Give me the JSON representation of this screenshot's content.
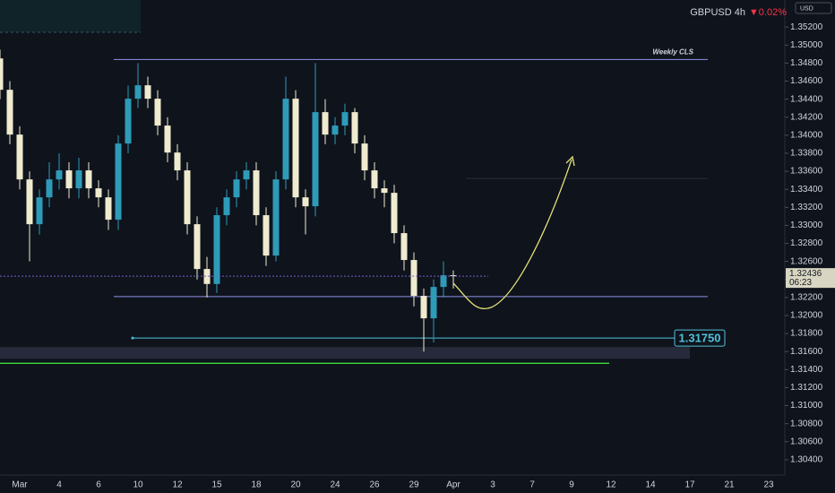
{
  "chart_data": {
    "type": "candlestick",
    "symbol": "GBPUSD 4h",
    "change": {
      "value": -0.02,
      "label": "▼0.02%"
    },
    "currency": "USD",
    "countdown": "06:23",
    "categories": [
      null,
      null,
      "Mar",
      null,
      null,
      null,
      "4",
      null,
      null,
      null,
      "6",
      null,
      null,
      null,
      "10",
      null,
      null,
      null,
      "12",
      null,
      null,
      null,
      "15",
      null,
      null,
      null,
      "18",
      null,
      null,
      null,
      "20",
      null,
      null,
      null,
      "24",
      null,
      null,
      null,
      "26",
      null,
      null,
      null,
      "29",
      null,
      null,
      null,
      "Apr",
      null,
      null,
      null,
      "3",
      null,
      null,
      null,
      "7",
      null,
      null,
      null,
      "9",
      null,
      null,
      null,
      "12",
      null,
      null,
      null,
      "14",
      null,
      null,
      null,
      "17",
      null,
      null,
      null,
      "21",
      null,
      null,
      null,
      "23",
      null
    ],
    "open": [
      1.34852,
      1.34504,
      1.34007,
      1.3351,
      1.33013,
      1.33311,
      1.3351,
      1.3361,
      1.33411,
      1.3361,
      1.33411,
      1.33311,
      1.33063,
      1.33908,
      1.34405,
      1.34554,
      1.34405,
      1.34107,
      1.33808,
      1.3361,
      1.33013,
      1.32516,
      1.3235,
      1.33113,
      1.33311,
      1.3351,
      1.3361,
      1.33113,
      1.32665,
      1.3351,
      1.34405,
      1.33311,
      1.33212,
      1.34256,
      1.34007,
      1.34107,
      1.34256,
      1.33908,
      1.3361,
      1.33411,
      1.33361,
      1.32914,
      1.32616,
      1.32218,
      1.31969,
      1.32317,
      1.32447,
      null,
      null,
      null,
      null,
      null,
      null,
      null,
      null,
      null,
      null,
      null,
      null,
      null,
      null,
      null,
      null,
      null,
      null,
      null,
      null,
      null,
      null,
      null,
      null,
      null,
      null,
      null,
      null,
      null,
      null,
      null,
      null,
      null
    ],
    "high": [
      1.3495,
      1.346,
      1.341,
      1.336,
      1.334,
      1.337,
      1.338,
      1.337,
      1.3375,
      1.337,
      1.335,
      1.334,
      1.34,
      1.3455,
      1.348,
      1.3465,
      1.345,
      1.342,
      1.339,
      1.337,
      1.331,
      1.3265,
      1.332,
      1.334,
      1.336,
      1.337,
      1.337,
      1.332,
      1.336,
      1.3465,
      1.345,
      1.334,
      1.348,
      1.344,
      1.342,
      1.3435,
      1.343,
      1.34,
      1.337,
      1.335,
      1.3345,
      1.33,
      1.327,
      1.323,
      1.324,
      1.326,
      1.325,
      null,
      null,
      null,
      null,
      null,
      null,
      null,
      null,
      null,
      null,
      null,
      null,
      null,
      null,
      null,
      null,
      null,
      null,
      null,
      null,
      null,
      null,
      null,
      null,
      null,
      null,
      null,
      null,
      null,
      null,
      null,
      null,
      null
    ],
    "low": [
      1.344,
      1.339,
      1.334,
      1.326,
      1.329,
      1.332,
      1.334,
      1.333,
      1.333,
      1.333,
      1.332,
      1.3295,
      1.3295,
      1.338,
      1.343,
      1.343,
      1.34,
      1.337,
      1.335,
      1.329,
      1.324,
      1.322,
      1.3225,
      1.33,
      1.332,
      1.334,
      1.33,
      1.3255,
      1.326,
      1.334,
      1.332,
      1.329,
      1.331,
      1.339,
      1.339,
      1.34,
      1.338,
      1.335,
      1.333,
      1.332,
      1.328,
      1.325,
      1.321,
      1.316,
      1.317,
      1.322,
      1.323,
      null,
      null,
      null,
      null,
      null,
      null,
      null,
      null,
      null,
      null,
      null,
      null,
      null,
      null,
      null,
      null,
      null,
      null,
      null,
      null,
      null,
      null,
      null,
      null,
      null,
      null,
      null,
      null,
      null,
      null,
      null,
      null,
      null
    ],
    "close": [
      1.34504,
      1.34007,
      1.3351,
      1.33013,
      1.33311,
      1.3351,
      1.3361,
      1.33411,
      1.3361,
      1.33411,
      1.33311,
      1.33063,
      1.33908,
      1.34405,
      1.34554,
      1.34405,
      1.34107,
      1.33808,
      1.3361,
      1.33013,
      1.32516,
      1.3235,
      1.33113,
      1.33311,
      1.3351,
      1.3361,
      1.33113,
      1.32665,
      1.3351,
      1.34405,
      1.33311,
      1.33212,
      1.34256,
      1.34007,
      1.34107,
      1.34256,
      1.33908,
      1.3361,
      1.33411,
      1.33361,
      1.32914,
      1.32616,
      1.32218,
      1.31969,
      1.32317,
      1.32447,
      1.32436,
      null,
      null,
      null,
      null,
      null,
      null,
      null,
      null,
      null,
      null,
      null,
      null,
      null,
      null,
      null,
      null,
      null,
      null,
      null,
      null,
      null,
      null,
      null,
      null,
      null,
      null,
      null,
      null,
      null,
      null,
      null,
      null,
      null
    ],
    "up_color": "#2e9bb8",
    "down_color": "#efebcf",
    "ylim": [
      1.3023,
      1.355
    ],
    "yticks": [
      {
        "value": 1.352,
        "label": "1.35200"
      },
      {
        "value": 1.35,
        "label": "1.35000"
      },
      {
        "value": 1.348,
        "label": "1.34800"
      },
      {
        "value": 1.346,
        "label": "1.34600"
      },
      {
        "value": 1.344,
        "label": "1.34400"
      },
      {
        "value": 1.342,
        "label": "1.34200"
      },
      {
        "value": 1.34,
        "label": "1.34000"
      },
      {
        "value": 1.338,
        "label": "1.33800"
      },
      {
        "value": 1.336,
        "label": "1.33600"
      },
      {
        "value": 1.334,
        "label": "1.33400"
      },
      {
        "value": 1.332,
        "label": "1.33200"
      },
      {
        "value": 1.33,
        "label": "1.33000"
      },
      {
        "value": 1.328,
        "label": "1.32800"
      },
      {
        "value": 1.326,
        "label": "1.32600"
      },
      {
        "value": 1.324,
        "label": "1.32400"
      },
      {
        "value": 1.322,
        "label": "1.32200"
      },
      {
        "value": 1.32,
        "label": "1.32000"
      },
      {
        "value": 1.318,
        "label": "1.31800"
      },
      {
        "value": 1.316,
        "label": "1.31600"
      },
      {
        "value": 1.314,
        "label": "1.31400"
      },
      {
        "value": 1.312,
        "label": "1.31200"
      },
      {
        "value": 1.31,
        "label": "1.31000"
      },
      {
        "value": 1.308,
        "label": "1.30800"
      },
      {
        "value": 1.306,
        "label": "1.30600"
      },
      {
        "value": 1.304,
        "label": "1.30400"
      }
    ],
    "levels": [
      {
        "value": 1.3484,
        "label": "Weekly CLS",
        "color": "#8f93e6"
      },
      {
        "value": 1.3221,
        "color": "#8f93e6"
      },
      {
        "value": 1.3175,
        "label": "1.31750",
        "color": "#4fc3d9"
      },
      {
        "value": 1.3147,
        "color": "#3ddc3d"
      },
      {
        "value": 1.3352,
        "color": "#2a2e39"
      }
    ],
    "zone": {
      "from": 1.3152,
      "to": 1.3165,
      "color": "#2a2e3e"
    }
  }
}
